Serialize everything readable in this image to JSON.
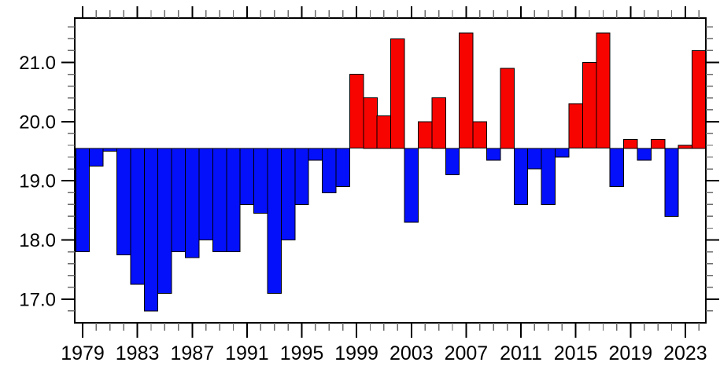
{
  "figure": {
    "background": "#ffffff",
    "description": "Annual bar chart of values relative to a baseline; bars above baseline are red, below are blue"
  },
  "chart_data": {
    "type": "bar",
    "title": "",
    "xlabel": "",
    "ylabel": "",
    "years": [
      1979,
      1980,
      1981,
      1982,
      1983,
      1984,
      1985,
      1986,
      1987,
      1988,
      1989,
      1990,
      1991,
      1992,
      1993,
      1994,
      1995,
      1996,
      1997,
      1998,
      1999,
      2000,
      2001,
      2002,
      2003,
      2004,
      2005,
      2006,
      2007,
      2008,
      2009,
      2010,
      2011,
      2012,
      2013,
      2014,
      2015,
      2016,
      2017,
      2018,
      2019,
      2020,
      2021,
      2022,
      2023,
      2024
    ],
    "values": [
      17.8,
      19.25,
      19.5,
      17.75,
      17.25,
      16.8,
      17.1,
      17.8,
      17.7,
      18.0,
      17.8,
      17.8,
      18.6,
      18.45,
      17.1,
      18.0,
      18.6,
      19.35,
      18.8,
      18.9,
      20.8,
      20.4,
      20.1,
      21.4,
      18.3,
      20.0,
      20.4,
      19.1,
      21.5,
      20.0,
      19.35,
      20.9,
      18.6,
      19.2,
      18.6,
      19.4,
      20.3,
      21.0,
      21.5,
      18.9,
      19.7,
      19.35,
      19.7,
      18.4,
      19.6,
      21.2
    ],
    "baseline": 19.55,
    "ylim": [
      16.6,
      21.75
    ],
    "ytick_labels": [
      "17.0",
      "18.0",
      "19.0",
      "20.0",
      "21.0"
    ],
    "ytick_major_values": [
      17.0,
      18.0,
      19.0,
      20.0,
      21.0
    ],
    "ytick_minor_step": 0.2,
    "xtick_labels": [
      "1979",
      "1983",
      "1987",
      "1991",
      "1995",
      "1999",
      "2003",
      "2007",
      "2011",
      "2015",
      "2019",
      "2023"
    ],
    "xtick_major_years": [
      1979,
      1983,
      1987,
      1991,
      1995,
      1999,
      2003,
      2007,
      2011,
      2015,
      2019,
      2023
    ],
    "xtick_minor_step": 1,
    "grid": "off",
    "legend": "none",
    "colors": {
      "above_baseline": "#f80400",
      "below_baseline": "#0410fa",
      "bar_outline": "#000000",
      "axis_frame": "#000000",
      "major_tick": "#000000",
      "minor_tick": "#6b6b6b",
      "label_text": "#000000"
    }
  }
}
